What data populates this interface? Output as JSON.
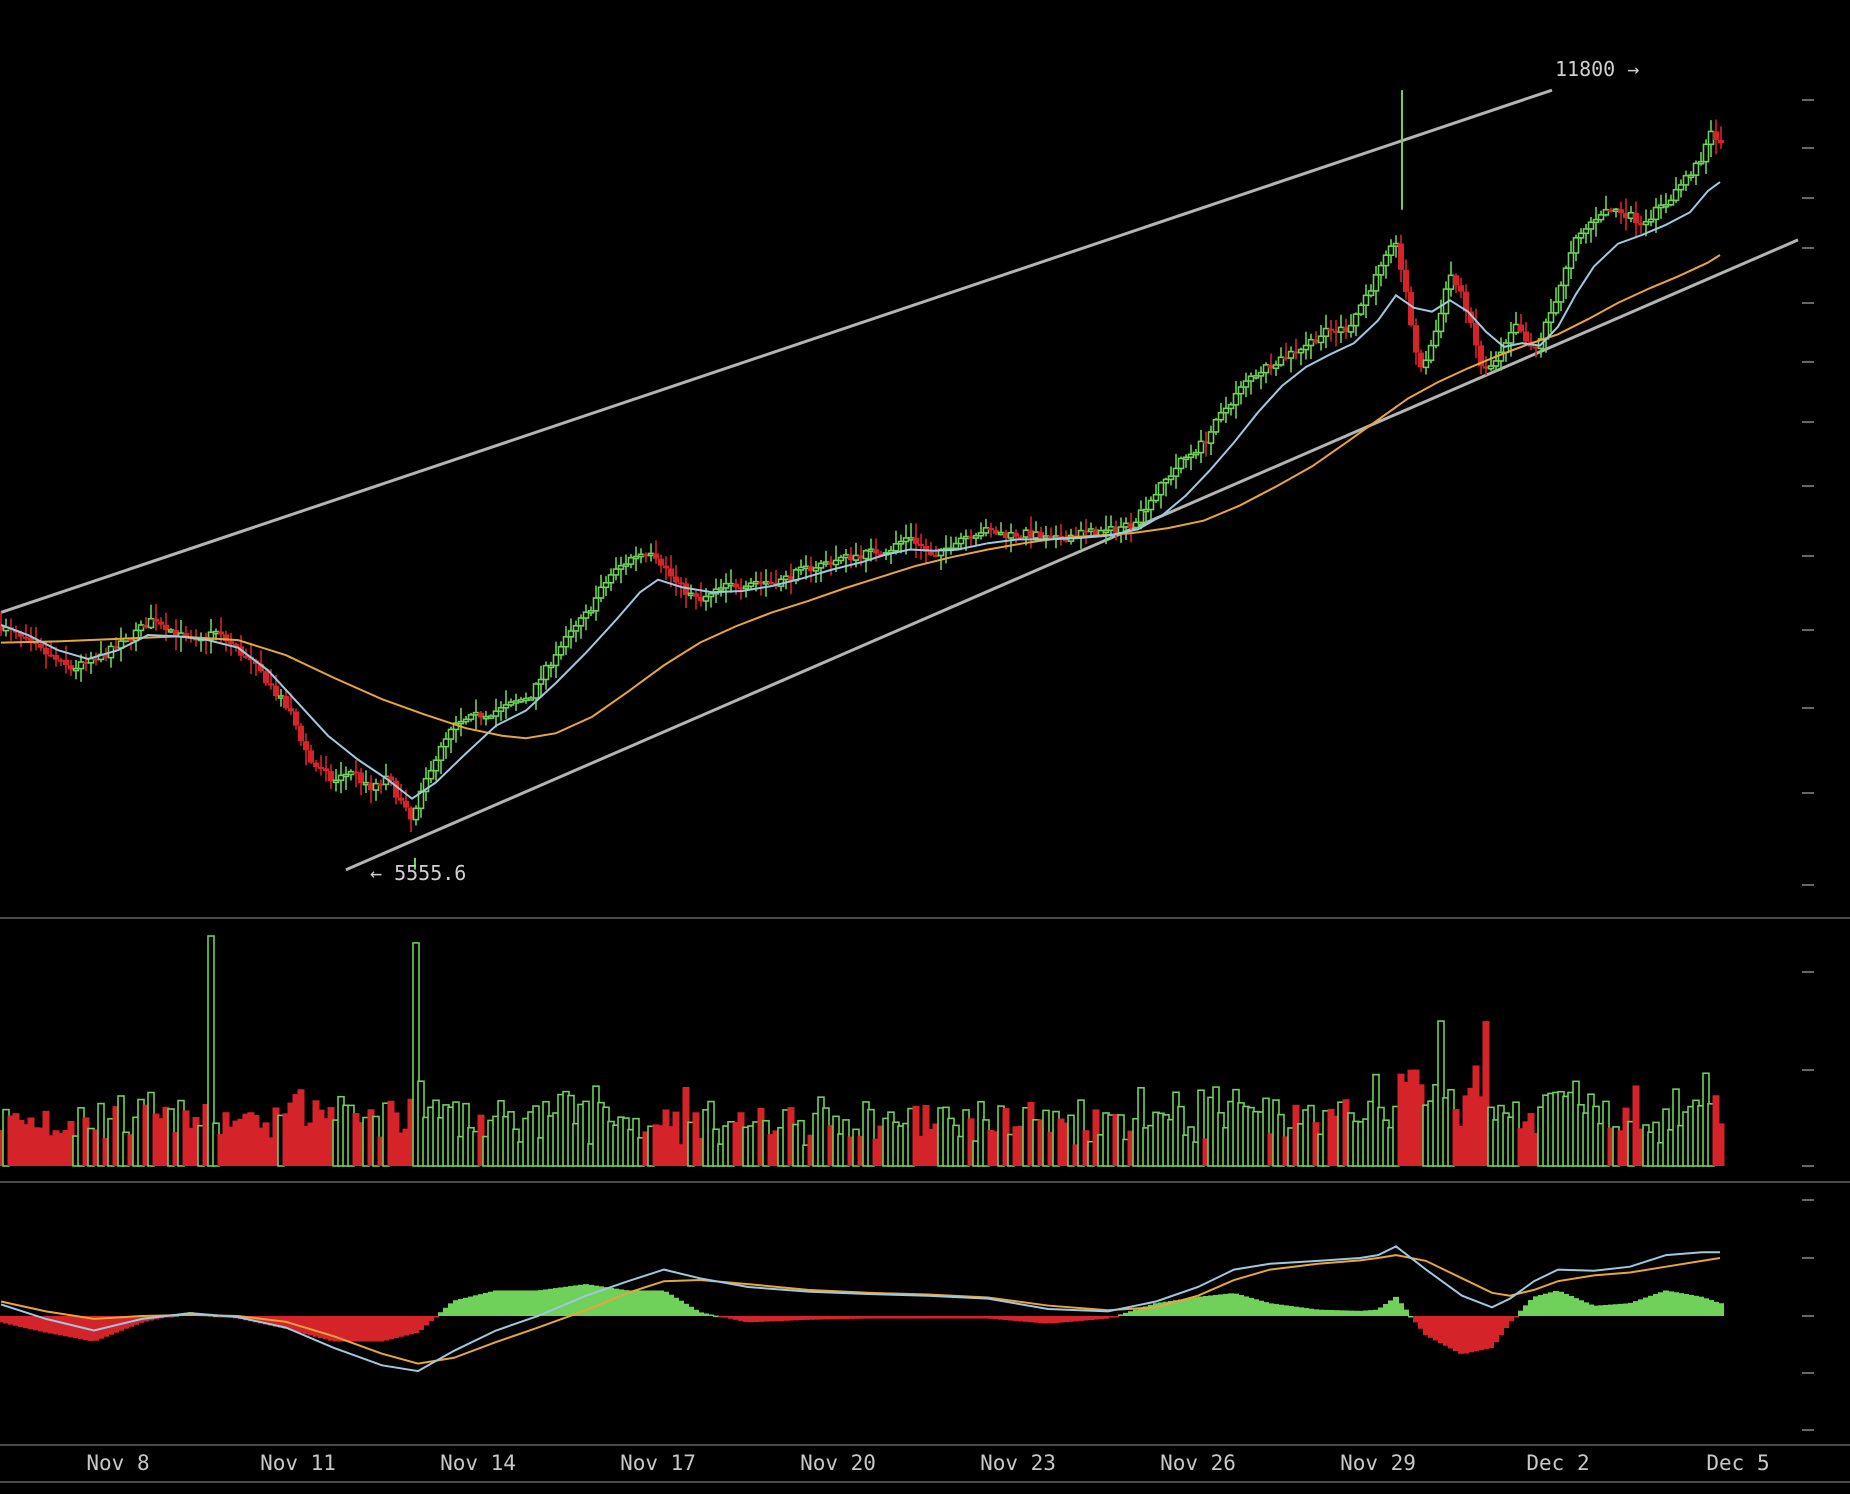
{
  "colors": {
    "background": "#000000",
    "up": "#6fd05a",
    "down": "#d4242a",
    "fast_ma": "#9fc8e0",
    "slow_ma": "#e8a53c",
    "trendline": "#b4b4b4",
    "separator": "#4a4a4a",
    "axis_text": "#c8c8c8"
  },
  "chart_data": {
    "type": "candlestick",
    "x_ticks": [
      "Nov 8",
      "Nov 11",
      "Nov 14",
      "Nov 17",
      "Nov 20",
      "Nov 23",
      "Nov 26",
      "Nov 29",
      "Dec 2",
      "Dec 5"
    ],
    "x_tick_days": [
      8,
      11,
      14,
      17,
      20,
      23,
      26,
      29,
      32,
      35
    ],
    "x_range_days": [
      6.05,
      36.05
    ],
    "price_range": [
      5410,
      11950
    ],
    "annotations": {
      "high_label": "11800 →",
      "high_value": 11800,
      "low_label": "← 5555.6",
      "low_value": 5555.6
    },
    "trendlines": [
      {
        "name": "upper",
        "points": [
          [
            6.05,
            7600
          ],
          [
            31.9,
            11750
          ]
        ]
      },
      {
        "name": "lower",
        "points": [
          [
            11.8,
            5555
          ],
          [
            36.0,
            10560
          ]
        ]
      }
    ],
    "price_path": [
      [
        6.05,
        7490
      ],
      [
        6.6,
        7330
      ],
      [
        7.2,
        7150
      ],
      [
        7.6,
        7210
      ],
      [
        8.1,
        7360
      ],
      [
        8.6,
        7560
      ],
      [
        9.0,
        7420
      ],
      [
        9.3,
        7350
      ],
      [
        9.6,
        7450
      ],
      [
        10.0,
        7300
      ],
      [
        10.4,
        7110
      ],
      [
        10.9,
        6780
      ],
      [
        11.2,
        6420
      ],
      [
        11.6,
        6250
      ],
      [
        11.9,
        6350
      ],
      [
        12.2,
        6180
      ],
      [
        12.5,
        6280
      ],
      [
        12.9,
        5930
      ],
      [
        13.2,
        6360
      ],
      [
        13.6,
        6690
      ],
      [
        14.0,
        6780
      ],
      [
        14.4,
        6830
      ],
      [
        14.9,
        6950
      ],
      [
        15.3,
        7280
      ],
      [
        15.8,
        7580
      ],
      [
        16.2,
        7890
      ],
      [
        16.6,
        8050
      ],
      [
        16.9,
        8100
      ],
      [
        17.3,
        7830
      ],
      [
        17.7,
        7680
      ],
      [
        18.1,
        7800
      ],
      [
        18.6,
        7850
      ],
      [
        19.0,
        7840
      ],
      [
        19.5,
        7950
      ],
      [
        20.0,
        8020
      ],
      [
        20.5,
        8070
      ],
      [
        20.9,
        8110
      ],
      [
        21.2,
        8210
      ],
      [
        21.6,
        8020
      ],
      [
        22.0,
        8190
      ],
      [
        22.4,
        8250
      ],
      [
        22.8,
        8220
      ],
      [
        23.2,
        8220
      ],
      [
        23.6,
        8170
      ],
      [
        24.0,
        8230
      ],
      [
        24.5,
        8240
      ],
      [
        24.9,
        8310
      ],
      [
        25.3,
        8550
      ],
      [
        25.7,
        8790
      ],
      [
        26.1,
        8950
      ],
      [
        26.5,
        9250
      ],
      [
        26.9,
        9480
      ],
      [
        27.3,
        9600
      ],
      [
        27.7,
        9700
      ],
      [
        28.1,
        9820
      ],
      [
        28.5,
        9860
      ],
      [
        28.9,
        10200
      ],
      [
        29.3,
        10550
      ],
      [
        29.7,
        9500
      ],
      [
        29.95,
        9800
      ],
      [
        30.2,
        10300
      ],
      [
        30.45,
        10050
      ],
      [
        30.75,
        9500
      ],
      [
        31.0,
        9600
      ],
      [
        31.3,
        9870
      ],
      [
        31.6,
        9650
      ],
      [
        31.9,
        10000
      ],
      [
        32.3,
        10550
      ],
      [
        32.7,
        10780
      ],
      [
        33.0,
        10800
      ],
      [
        33.4,
        10700
      ],
      [
        33.8,
        10850
      ],
      [
        34.2,
        11090
      ],
      [
        34.4,
        11180
      ],
      [
        34.55,
        11450
      ],
      [
        34.7,
        11300
      ]
    ],
    "ma_fast": [
      [
        6.05,
        7500
      ],
      [
        6.5,
        7420
      ],
      [
        7.0,
        7300
      ],
      [
        7.5,
        7230
      ],
      [
        8.0,
        7300
      ],
      [
        8.5,
        7420
      ],
      [
        9.0,
        7410
      ],
      [
        9.5,
        7380
      ],
      [
        10.0,
        7320
      ],
      [
        10.5,
        7140
      ],
      [
        11.0,
        6880
      ],
      [
        11.5,
        6620
      ],
      [
        12.0,
        6430
      ],
      [
        12.5,
        6270
      ],
      [
        12.9,
        6120
      ],
      [
        13.3,
        6250
      ],
      [
        13.8,
        6480
      ],
      [
        14.3,
        6700
      ],
      [
        14.8,
        6820
      ],
      [
        15.3,
        7040
      ],
      [
        15.8,
        7280
      ],
      [
        16.3,
        7540
      ],
      [
        16.7,
        7760
      ],
      [
        17.0,
        7860
      ],
      [
        17.4,
        7800
      ],
      [
        17.9,
        7760
      ],
      [
        18.4,
        7770
      ],
      [
        18.9,
        7810
      ],
      [
        19.4,
        7870
      ],
      [
        19.9,
        7940
      ],
      [
        20.4,
        8000
      ],
      [
        20.8,
        8060
      ],
      [
        21.2,
        8100
      ],
      [
        21.6,
        8090
      ],
      [
        22.0,
        8100
      ],
      [
        22.5,
        8150
      ],
      [
        23.0,
        8180
      ],
      [
        23.5,
        8180
      ],
      [
        24.0,
        8190
      ],
      [
        24.5,
        8210
      ],
      [
        25.0,
        8260
      ],
      [
        25.4,
        8370
      ],
      [
        25.8,
        8530
      ],
      [
        26.2,
        8730
      ],
      [
        26.6,
        8950
      ],
      [
        27.0,
        9190
      ],
      [
        27.4,
        9400
      ],
      [
        27.8,
        9550
      ],
      [
        28.2,
        9650
      ],
      [
        28.6,
        9740
      ],
      [
        29.0,
        9920
      ],
      [
        29.3,
        10120
      ],
      [
        29.6,
        10020
      ],
      [
        29.9,
        9990
      ],
      [
        30.2,
        10080
      ],
      [
        30.5,
        9990
      ],
      [
        30.8,
        9830
      ],
      [
        31.1,
        9710
      ],
      [
        31.4,
        9740
      ],
      [
        31.7,
        9720
      ],
      [
        32.0,
        9870
      ],
      [
        32.3,
        10130
      ],
      [
        32.6,
        10350
      ],
      [
        33.0,
        10530
      ],
      [
        33.4,
        10600
      ],
      [
        33.8,
        10680
      ],
      [
        34.2,
        10780
      ],
      [
        34.5,
        10950
      ],
      [
        34.7,
        11020
      ]
    ],
    "ma_slow": [
      [
        6.05,
        7360
      ],
      [
        7.0,
        7370
      ],
      [
        8.0,
        7390
      ],
      [
        9.0,
        7410
      ],
      [
        10.0,
        7380
      ],
      [
        10.8,
        7260
      ],
      [
        11.6,
        7080
      ],
      [
        12.4,
        6910
      ],
      [
        13.1,
        6790
      ],
      [
        13.8,
        6680
      ],
      [
        14.4,
        6620
      ],
      [
        14.8,
        6600
      ],
      [
        15.3,
        6640
      ],
      [
        15.9,
        6770
      ],
      [
        16.5,
        6970
      ],
      [
        17.1,
        7180
      ],
      [
        17.7,
        7360
      ],
      [
        18.3,
        7490
      ],
      [
        18.9,
        7600
      ],
      [
        19.5,
        7690
      ],
      [
        20.1,
        7790
      ],
      [
        20.7,
        7880
      ],
      [
        21.3,
        7970
      ],
      [
        21.9,
        8040
      ],
      [
        22.5,
        8100
      ],
      [
        23.1,
        8150
      ],
      [
        23.7,
        8190
      ],
      [
        24.3,
        8210
      ],
      [
        24.9,
        8230
      ],
      [
        25.5,
        8270
      ],
      [
        26.1,
        8330
      ],
      [
        26.7,
        8450
      ],
      [
        27.3,
        8600
      ],
      [
        27.9,
        8760
      ],
      [
        28.5,
        8960
      ],
      [
        29.0,
        9130
      ],
      [
        29.5,
        9300
      ],
      [
        30.0,
        9430
      ],
      [
        30.5,
        9540
      ],
      [
        31.0,
        9640
      ],
      [
        31.5,
        9730
      ],
      [
        32.0,
        9810
      ],
      [
        32.5,
        9930
      ],
      [
        33.0,
        10060
      ],
      [
        33.5,
        10170
      ],
      [
        34.0,
        10270
      ],
      [
        34.5,
        10380
      ],
      [
        34.7,
        10440
      ]
    ],
    "large_volume_spikes": [
      [
        9.55,
        1.0
      ],
      [
        12.95,
        0.97
      ],
      [
        30.05,
        0.63
      ],
      [
        30.8,
        0.63
      ]
    ],
    "macd": {
      "macd_path": [
        [
          6.05,
          0.2
        ],
        [
          6.8,
          -0.05
        ],
        [
          7.6,
          -0.25
        ],
        [
          8.4,
          -0.05
        ],
        [
          9.2,
          0.05
        ],
        [
          10.0,
          -0.02
        ],
        [
          10.8,
          -0.2
        ],
        [
          11.6,
          -0.55
        ],
        [
          12.4,
          -0.85
        ],
        [
          13.0,
          -0.95
        ],
        [
          13.6,
          -0.6
        ],
        [
          14.3,
          -0.25
        ],
        [
          15.0,
          0.0
        ],
        [
          15.8,
          0.35
        ],
        [
          16.5,
          0.6
        ],
        [
          17.1,
          0.8
        ],
        [
          17.7,
          0.65
        ],
        [
          18.5,
          0.5
        ],
        [
          19.5,
          0.42
        ],
        [
          20.5,
          0.38
        ],
        [
          21.5,
          0.35
        ],
        [
          22.5,
          0.3
        ],
        [
          23.5,
          0.12
        ],
        [
          24.5,
          0.08
        ],
        [
          25.3,
          0.25
        ],
        [
          26.0,
          0.5
        ],
        [
          26.6,
          0.8
        ],
        [
          27.2,
          0.9
        ],
        [
          28.0,
          0.95
        ],
        [
          28.7,
          1.0
        ],
        [
          29.0,
          1.05
        ],
        [
          29.3,
          1.2
        ],
        [
          29.8,
          0.8
        ],
        [
          30.4,
          0.35
        ],
        [
          30.9,
          0.15
        ],
        [
          31.2,
          0.3
        ],
        [
          31.6,
          0.6
        ],
        [
          32.0,
          0.8
        ],
        [
          32.6,
          0.78
        ],
        [
          33.2,
          0.85
        ],
        [
          33.8,
          1.05
        ],
        [
          34.4,
          1.1
        ],
        [
          34.7,
          1.1
        ]
      ],
      "signal_path": [
        [
          6.05,
          0.25
        ],
        [
          6.8,
          0.08
        ],
        [
          7.6,
          -0.05
        ],
        [
          8.4,
          0.0
        ],
        [
          9.2,
          0.02
        ],
        [
          10.0,
          0.0
        ],
        [
          10.8,
          -0.1
        ],
        [
          11.6,
          -0.35
        ],
        [
          12.4,
          -0.65
        ],
        [
          13.0,
          -0.82
        ],
        [
          13.6,
          -0.72
        ],
        [
          14.3,
          -0.45
        ],
        [
          15.0,
          -0.2
        ],
        [
          15.8,
          0.1
        ],
        [
          16.5,
          0.4
        ],
        [
          17.1,
          0.6
        ],
        [
          17.7,
          0.62
        ],
        [
          18.5,
          0.55
        ],
        [
          19.5,
          0.45
        ],
        [
          20.5,
          0.4
        ],
        [
          21.5,
          0.37
        ],
        [
          22.5,
          0.32
        ],
        [
          23.5,
          0.18
        ],
        [
          24.5,
          0.1
        ],
        [
          25.3,
          0.15
        ],
        [
          26.0,
          0.35
        ],
        [
          26.6,
          0.62
        ],
        [
          27.2,
          0.8
        ],
        [
          28.0,
          0.9
        ],
        [
          28.7,
          0.96
        ],
        [
          29.0,
          1.0
        ],
        [
          29.3,
          1.05
        ],
        [
          29.8,
          0.95
        ],
        [
          30.4,
          0.65
        ],
        [
          30.9,
          0.4
        ],
        [
          31.2,
          0.35
        ],
        [
          31.6,
          0.45
        ],
        [
          32.0,
          0.6
        ],
        [
          32.6,
          0.7
        ],
        [
          33.2,
          0.75
        ],
        [
          33.8,
          0.85
        ],
        [
          34.4,
          0.95
        ],
        [
          34.7,
          1.0
        ]
      ]
    }
  }
}
